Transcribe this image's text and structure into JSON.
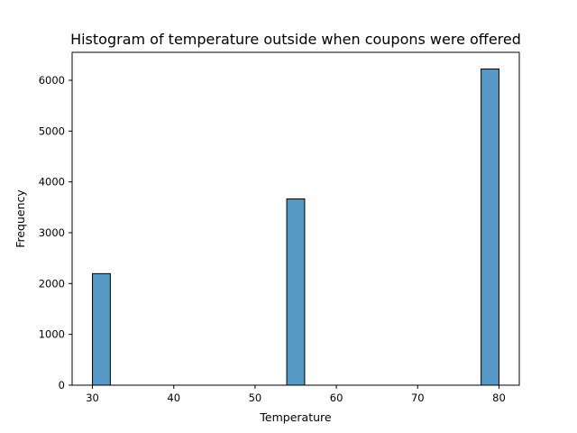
{
  "chart_data": {
    "type": "bar",
    "title": "Histogram of temperature outside when coupons were offered",
    "xlabel": "Temperature",
    "ylabel": "Frequency",
    "xlim": [
      27.5,
      82.5
    ],
    "ylim": [
      0,
      6550
    ],
    "xticks": [
      30,
      40,
      50,
      60,
      70,
      80
    ],
    "yticks": [
      0,
      1000,
      2000,
      3000,
      4000,
      5000,
      6000
    ],
    "grid": false,
    "bar_color": "#5799c6",
    "edge_color": "#000000",
    "bins": [
      {
        "x_start": 30.0,
        "x_end": 32.2,
        "count": 2195
      },
      {
        "x_start": 53.9,
        "x_end": 56.1,
        "count": 3665
      },
      {
        "x_start": 77.8,
        "x_end": 80.0,
        "count": 6222
      }
    ]
  }
}
